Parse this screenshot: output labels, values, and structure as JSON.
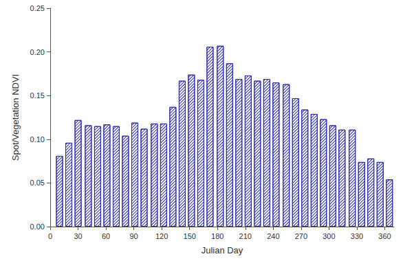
{
  "chart_data": {
    "type": "bar",
    "x_label": "Julian Day",
    "y_label": "Spot/Vegetation NDVI",
    "x": [
      10,
      20,
      30,
      41,
      51,
      61,
      71,
      81,
      91,
      101,
      112,
      122,
      132,
      142,
      152,
      162,
      172,
      183,
      193,
      203,
      213,
      223,
      233,
      243,
      254,
      264,
      274,
      284,
      294,
      304,
      314,
      325,
      335,
      345,
      355,
      365
    ],
    "values": [
      0.081,
      0.096,
      0.122,
      0.116,
      0.115,
      0.117,
      0.115,
      0.104,
      0.119,
      0.112,
      0.118,
      0.118,
      0.137,
      0.167,
      0.174,
      0.168,
      0.206,
      0.207,
      0.187,
      0.169,
      0.173,
      0.167,
      0.169,
      0.165,
      0.163,
      0.147,
      0.134,
      0.129,
      0.123,
      0.116,
      0.111,
      0.111,
      0.074,
      0.078,
      0.074,
      0.054
    ],
    "color": "#2b2bb0",
    "xlim": [
      0,
      370
    ],
    "xticks": [
      0,
      30,
      60,
      90,
      120,
      150,
      180,
      210,
      240,
      270,
      300,
      330,
      360
    ],
    "ylim": [
      0,
      0.25
    ],
    "yticks": [
      {
        "value": 0,
        "label": "0.00"
      },
      {
        "value": 0.05,
        "label": "0.05"
      },
      {
        "value": 0.1,
        "label": "0.10"
      },
      {
        "value": 0.15,
        "label": "0.15"
      },
      {
        "value": 0.2,
        "label": "0.20"
      },
      {
        "value": 0.25,
        "label": "0.25"
      }
    ],
    "grid": false
  }
}
